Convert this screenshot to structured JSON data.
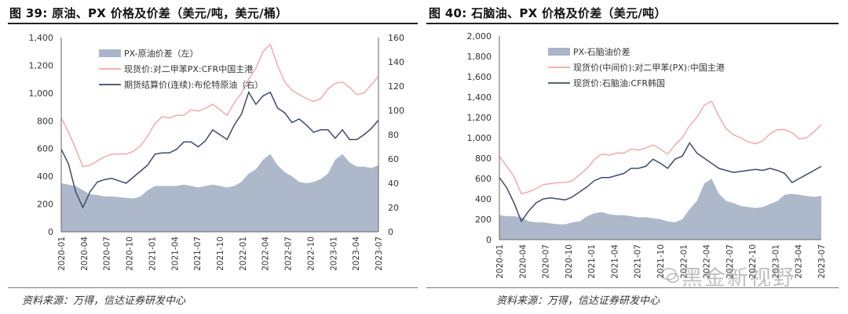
{
  "watermark": "黑金新视野",
  "chart_data": [
    {
      "type": "area",
      "title": "图 39:  原油、PX 价格及价差（美元/吨，美元/桶）",
      "source": "资料来源：万得，信达证券研发中心",
      "y_left_ticks": [
        "0",
        "200",
        "400",
        "600",
        "800",
        "1,000",
        "1,200",
        "1,400"
      ],
      "y_left_range": [
        0,
        1400
      ],
      "y_right_ticks": [
        "0",
        "20",
        "40",
        "60",
        "80",
        "100",
        "120",
        "140",
        "160"
      ],
      "y_right_range": [
        0,
        160
      ],
      "x_ticks": [
        "2020-01",
        "2020-04",
        "2020-07",
        "2020-10",
        "2021-01",
        "2021-04",
        "2021-07",
        "2021-10",
        "2022-01",
        "2022-04",
        "2022-07",
        "2022-10",
        "2023-01",
        "2023-04",
        "2023-07"
      ],
      "legend": [
        "PX-原油价差（左）",
        "现货价:对二甲苯PX:CFR中国主港",
        "期货结算价(连续):布伦特原油（右）"
      ],
      "colors": {
        "spread": "#a9b5c8",
        "px": "#f3a5a5",
        "crude": "#3d4b6b"
      },
      "x": [
        "2020-01",
        "2020-02",
        "2020-03",
        "2020-04",
        "2020-05",
        "2020-06",
        "2020-07",
        "2020-08",
        "2020-09",
        "2020-10",
        "2020-11",
        "2020-12",
        "2021-01",
        "2021-02",
        "2021-03",
        "2021-04",
        "2021-05",
        "2021-06",
        "2021-07",
        "2021-08",
        "2021-09",
        "2021-10",
        "2021-11",
        "2021-12",
        "2022-01",
        "2022-02",
        "2022-03",
        "2022-04",
        "2022-05",
        "2022-06",
        "2022-07",
        "2022-08",
        "2022-09",
        "2022-10",
        "2022-11",
        "2022-12",
        "2023-01",
        "2023-02",
        "2023-03",
        "2023-04",
        "2023-05",
        "2023-06",
        "2023-07",
        "2023-08",
        "2023-09"
      ],
      "series": [
        {
          "name": "PX-原油价差（左）",
          "axis": "left",
          "kind": "area",
          "values": [
            350,
            340,
            330,
            300,
            270,
            265,
            255,
            255,
            250,
            245,
            240,
            255,
            300,
            330,
            330,
            330,
            330,
            340,
            330,
            320,
            330,
            340,
            330,
            320,
            330,
            360,
            420,
            450,
            520,
            560,
            480,
            430,
            400,
            360,
            350,
            360,
            380,
            420,
            520,
            560,
            500,
            470,
            470,
            460,
            480
          ]
        },
        {
          "name": "现货价:对二甲苯PX:CFR中国主港",
          "axis": "left",
          "kind": "line",
          "values": [
            820,
            720,
            600,
            470,
            480,
            510,
            540,
            560,
            560,
            560,
            580,
            620,
            690,
            780,
            830,
            820,
            840,
            840,
            880,
            870,
            890,
            920,
            880,
            840,
            930,
            1000,
            1100,
            1180,
            1300,
            1350,
            1200,
            1080,
            1020,
            990,
            960,
            940,
            960,
            1030,
            1070,
            1080,
            1040,
            990,
            1000,
            1060,
            1120
          ]
        },
        {
          "name": "期货结算价(连续):布伦特原油（右）",
          "axis": "right",
          "kind": "line",
          "values": [
            68,
            56,
            33,
            20,
            33,
            41,
            43,
            44,
            42,
            40,
            45,
            50,
            55,
            64,
            65,
            65,
            68,
            74,
            74,
            70,
            75,
            84,
            80,
            76,
            88,
            97,
            115,
            105,
            112,
            115,
            102,
            98,
            90,
            93,
            88,
            82,
            84,
            84,
            77,
            84,
            76,
            76,
            80,
            85,
            92
          ]
        }
      ]
    },
    {
      "type": "area",
      "title": "图 40:  石脑油、PX 价格及价差（美元/吨）",
      "source": "资料来源：万得，信达证券研发中心",
      "y_left_ticks": [
        "0",
        "200",
        "400",
        "600",
        "800",
        "1,000",
        "1,200",
        "1,400",
        "1,600",
        "1,800",
        "2,000"
      ],
      "y_left_range": [
        0,
        2000
      ],
      "x_ticks": [
        "2020-01",
        "2020-04",
        "2020-07",
        "2020-10",
        "2021-01",
        "2021-04",
        "2021-07",
        "2021-10",
        "2022-01",
        "2022-04",
        "2022-07",
        "2022-10",
        "2023-01",
        "2023-04",
        "2023-07"
      ],
      "legend": [
        "PX-石脑油价差",
        "现货价(中间价):对二甲苯(PX):中国主港",
        "现货价:石脑油:CFR韩国"
      ],
      "colors": {
        "spread": "#a9b5c8",
        "px": "#f3a5a5",
        "naphtha": "#3d4b6b"
      },
      "x": [
        "2020-01",
        "2020-02",
        "2020-03",
        "2020-04",
        "2020-05",
        "2020-06",
        "2020-07",
        "2020-08",
        "2020-09",
        "2020-10",
        "2020-11",
        "2020-12",
        "2021-01",
        "2021-02",
        "2021-03",
        "2021-04",
        "2021-05",
        "2021-06",
        "2021-07",
        "2021-08",
        "2021-09",
        "2021-10",
        "2021-11",
        "2021-12",
        "2022-01",
        "2022-02",
        "2022-03",
        "2022-04",
        "2022-05",
        "2022-06",
        "2022-07",
        "2022-08",
        "2022-09",
        "2022-10",
        "2022-11",
        "2022-12",
        "2023-01",
        "2023-02",
        "2023-03",
        "2023-04",
        "2023-05",
        "2023-06",
        "2023-07",
        "2023-08",
        "2023-09"
      ],
      "series": [
        {
          "name": "PX-石脑油价差",
          "axis": "left",
          "kind": "area",
          "values": [
            240,
            230,
            230,
            220,
            180,
            170,
            170,
            160,
            150,
            150,
            170,
            180,
            230,
            260,
            270,
            250,
            240,
            240,
            230,
            220,
            220,
            210,
            200,
            180,
            170,
            200,
            300,
            380,
            550,
            600,
            450,
            380,
            360,
            330,
            320,
            310,
            320,
            350,
            380,
            440,
            450,
            440,
            430,
            420,
            430
          ]
        },
        {
          "name": "现货价(中间价):对二甲苯(PX):中国主港",
          "axis": "left",
          "kind": "line",
          "values": [
            820,
            720,
            620,
            450,
            470,
            500,
            540,
            550,
            560,
            560,
            580,
            640,
            700,
            790,
            840,
            830,
            850,
            850,
            890,
            880,
            900,
            930,
            890,
            840,
            930,
            1000,
            1120,
            1200,
            1320,
            1360,
            1210,
            1090,
            1030,
            1000,
            960,
            940,
            970,
            1040,
            1080,
            1080,
            1050,
            990,
            1000,
            1060,
            1130
          ]
        },
        {
          "name": "现货价:石脑油:CFR韩国",
          "axis": "left",
          "kind": "line",
          "values": [
            610,
            510,
            360,
            180,
            280,
            360,
            400,
            410,
            400,
            390,
            420,
            470,
            520,
            580,
            610,
            610,
            630,
            650,
            700,
            700,
            720,
            790,
            750,
            700,
            790,
            820,
            950,
            850,
            800,
            750,
            700,
            680,
            660,
            670,
            680,
            690,
            680,
            700,
            680,
            650,
            560,
            600,
            640,
            680,
            720
          ]
        }
      ]
    }
  ]
}
